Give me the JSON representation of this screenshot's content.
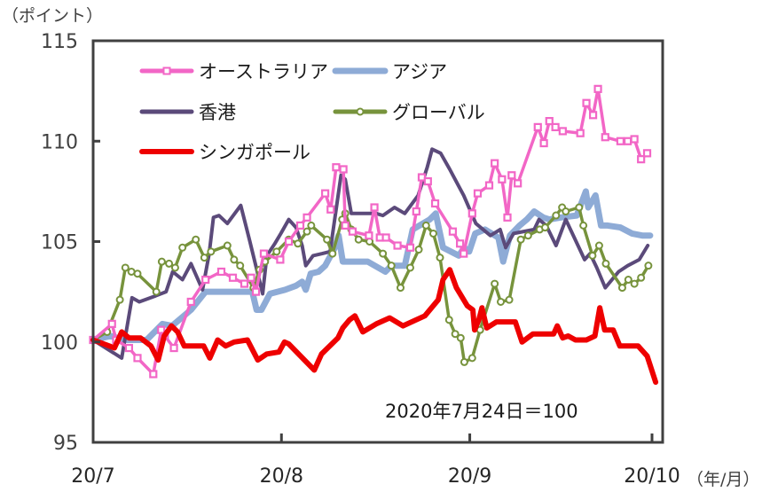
{
  "chart_data": {
    "type": "line",
    "title": "",
    "ylabel": "（ポイント）",
    "xlabel": "（年/月）",
    "ylim": [
      95,
      115
    ],
    "yticks": [
      95,
      100,
      105,
      110,
      115
    ],
    "ytick_labels": [
      "95",
      "100",
      "105",
      "110",
      "115"
    ],
    "x_units": "days since 2020-07-01",
    "xlim": [
      0,
      92
    ],
    "xticks": [
      0,
      31,
      62,
      92
    ],
    "xtick_labels": [
      "20/7",
      "20/8",
      "20/9",
      "20/10"
    ],
    "grid": false,
    "legend_position": "top-left",
    "annotation": "2020年7月24日＝100",
    "series": [
      {
        "name": "オーストラリア",
        "color": "#f266c6",
        "marker": "square",
        "x": [
          0,
          3.1,
          3.8,
          5.9,
          7.3,
          9.9,
          11.2,
          11.8,
          13.3,
          16.1,
          18.5,
          21.1,
          23,
          24.9,
          26,
          26.8,
          28.1,
          30.8,
          32.2,
          34.1,
          35.2,
          38.2,
          39.1,
          40.0,
          41.2,
          41.5,
          42.7,
          45.4,
          46.3,
          47.2,
          48.2,
          50.1,
          52.2,
          53.2,
          54.1,
          55.1,
          56.3,
          59.2,
          60.4,
          61.0,
          62.4,
          63.3,
          65.2,
          66.1,
          67.3,
          68.2,
          68.9,
          69.9,
          73.2,
          74.2,
          75.1,
          76.1,
          77.3,
          80.2,
          81.2,
          82.3,
          83.1,
          84.3,
          86.8,
          88.0,
          89.1,
          90.2,
          91.2
        ],
        "values": [
          100.1,
          100.9,
          100.1,
          99.7,
          99.2,
          98.4,
          100.6,
          100.3,
          99.7,
          102.0,
          103.1,
          103.5,
          103.2,
          102.9,
          103.2,
          102.5,
          104.4,
          104.1,
          105.0,
          105.8,
          106.2,
          107.4,
          106.6,
          108.7,
          108.6,
          105.8,
          105.5,
          105.3,
          106.7,
          105.2,
          105.2,
          104.8,
          104.7,
          106.5,
          108.2,
          108.0,
          106.9,
          105.5,
          104.9,
          104.4,
          106.4,
          107.4,
          107.8,
          108.9,
          108.1,
          106.2,
          108.3,
          107.9,
          110.7,
          109.9,
          111.0,
          110.7,
          110.5,
          110.4,
          111.9,
          111.3,
          112.6,
          110.2,
          110.0,
          110.0,
          110.1,
          109.1,
          109.4
        ]
      },
      {
        "name": "アジア",
        "color": "#8eabd6",
        "marker": "none",
        "x": [
          0,
          2.9,
          5.1,
          7.3,
          8.8,
          11.4,
          13.0,
          16.1,
          18.5,
          21.1,
          23.8,
          26.2,
          26.9,
          27.7,
          29.1,
          31.6,
          33.4,
          34.4,
          35.0,
          35.8,
          37.1,
          38.2,
          39.8,
          40.4,
          41.1,
          42.4,
          45.2,
          48.1,
          49.1,
          51.3,
          52.6,
          55.4,
          56.4,
          57.6,
          60.2,
          61.1,
          61.9,
          62.9,
          64.5,
          66.7,
          67.5,
          68.6,
          70.2,
          71.4,
          72.6,
          74.1,
          75.1,
          77.0,
          79.6,
          81.1,
          81.5,
          82.7,
          83.6,
          84.7,
          86.8,
          88.7,
          90.4,
          91.7
        ],
        "values": [
          100.1,
          100.3,
          100.1,
          100.1,
          100.1,
          100.9,
          100.8,
          101.6,
          102.5,
          102.5,
          102.5,
          102.5,
          101.6,
          101.6,
          102.4,
          102.6,
          102.8,
          103.0,
          102.6,
          103.4,
          103.5,
          103.8,
          104.7,
          105.3,
          104.0,
          104.0,
          104.0,
          103.5,
          103.8,
          103.8,
          105.6,
          106.1,
          106.4,
          104.7,
          104.3,
          104.7,
          104.5,
          105.4,
          105.6,
          105.2,
          104.0,
          105.3,
          105.8,
          106.1,
          106.5,
          106.2,
          106.1,
          106.2,
          106.3,
          107.5,
          106.7,
          107.3,
          105.8,
          105.8,
          105.7,
          105.4,
          105.3,
          105.3
        ]
      },
      {
        "name": "香港",
        "color": "#5b4a7a",
        "marker": "none",
        "x": [
          0,
          4.7,
          6.4,
          7.6,
          10.3,
          12.0,
          13.1,
          14.7,
          16.1,
          18.0,
          19.1,
          19.8,
          20.7,
          22.1,
          24.3,
          25.8,
          27.9,
          28.6,
          29.9,
          30.9,
          32.2,
          33.4,
          34.4,
          35.0,
          36.2,
          37.7,
          39.0,
          40.8,
          41.5,
          42.5,
          45.5,
          46.6,
          47.7,
          49.6,
          51.3,
          53.5,
          55.0,
          55.8,
          57.2,
          58.7,
          60.1,
          61.0,
          62.0,
          63.0,
          65.4,
          67.0,
          67.9,
          69.2,
          72.6,
          73.4,
          74.6,
          76.2,
          77.8,
          80.9,
          81.8,
          82.9,
          84.3,
          86.5,
          88.0,
          89.9,
          91.3
        ],
        "values": [
          100.1,
          99.2,
          102.2,
          102.0,
          102.3,
          102.5,
          103.5,
          103.1,
          103.9,
          102.6,
          104.4,
          106.2,
          106.3,
          105.9,
          106.8,
          105.0,
          102.4,
          104.3,
          104.9,
          105.4,
          106.1,
          105.7,
          104.8,
          103.8,
          104.3,
          104.4,
          104.5,
          108.3,
          108.1,
          106.4,
          106.4,
          106.4,
          106.3,
          106.7,
          106.4,
          107.3,
          108.7,
          109.6,
          109.4,
          108.6,
          107.8,
          107.3,
          106.6,
          105.9,
          105.3,
          105.6,
          104.7,
          105.4,
          105.6,
          106.1,
          105.8,
          104.8,
          106.1,
          104.1,
          104.4,
          103.7,
          102.7,
          103.5,
          103.8,
          104.1,
          104.8
        ]
      },
      {
        "name": "グローバル",
        "color": "#77933c",
        "marker": "circle",
        "x": [
          0,
          2.3,
          4.4,
          5.3,
          6.3,
          7.3,
          10.4,
          11.3,
          12.5,
          13.5,
          14.7,
          16.9,
          18.3,
          19.4,
          22.1,
          23.2,
          24.2,
          26.4,
          27.4,
          28.3,
          30.2,
          32.2,
          33.7,
          35.2,
          35.9,
          38.5,
          39.4,
          41.0,
          41.5,
          42.5,
          43.7,
          45.5,
          47.7,
          49.1,
          50.6,
          52.2,
          53.6,
          54.8,
          56.0,
          57.1,
          58.6,
          59.6,
          60.5,
          61.1,
          62.4,
          63.7,
          66.1,
          67.1,
          68.5,
          70.4,
          71.6,
          73.5,
          74.4,
          76.2,
          77.2,
          77.8,
          80.0,
          80.7,
          82.2,
          83.3,
          84.4,
          87.1,
          88.1,
          89.1,
          90.2,
          91.4
        ],
        "values": [
          100.1,
          100.5,
          102.1,
          103.7,
          103.5,
          103.4,
          102.5,
          104.0,
          103.9,
          103.7,
          104.7,
          105.1,
          104.2,
          104.5,
          104.8,
          104.1,
          103.8,
          102.7,
          103.6,
          104.0,
          104.5,
          105.1,
          104.9,
          105.5,
          105.8,
          105.1,
          104.4,
          106.1,
          106.4,
          105.6,
          105.1,
          105.0,
          104.4,
          103.8,
          102.7,
          103.7,
          104.6,
          105.8,
          105.4,
          104.2,
          101.1,
          100.4,
          100.2,
          99.0,
          99.2,
          100.6,
          102.9,
          102.0,
          102.1,
          105.1,
          105.3,
          105.6,
          105.7,
          106.3,
          106.7,
          106.5,
          106.7,
          105.8,
          104.3,
          104.8,
          103.9,
          102.7,
          103.1,
          102.9,
          103.2,
          103.8
        ]
      },
      {
        "name": "シンガポール",
        "color": "#ee0000",
        "marker": "none",
        "x": [
          0,
          3.5,
          4.7,
          5.9,
          7.8,
          9.5,
          10.7,
          11.7,
          12.9,
          13.9,
          15.0,
          18.2,
          19.2,
          20.5,
          21.8,
          23.2,
          25.4,
          27.1,
          28.6,
          30.6,
          31.5,
          32.2,
          36.4,
          37.6,
          40.3,
          41.1,
          42.2,
          43.1,
          44.4,
          46.6,
          48.8,
          51.0,
          54.6,
          56.8,
          57.6,
          58.7,
          59.8,
          61.6,
          62.5,
          62.8,
          63.5,
          64.0,
          64.8,
          66.4,
          69.5,
          70.6,
          72.4,
          74.6,
          75.8,
          76.4,
          77.3,
          78.2,
          79.4,
          81.2,
          82.6,
          83.4,
          84.2,
          85.6,
          86.7,
          89.7,
          91.2,
          92.6
        ],
        "values": [
          100.1,
          99.7,
          100.5,
          100.2,
          100.2,
          99.8,
          99.1,
          100.3,
          100.8,
          100.5,
          99.8,
          99.8,
          99.2,
          100.1,
          99.8,
          100.0,
          100.1,
          99.1,
          99.4,
          99.5,
          100.0,
          99.9,
          98.6,
          99.4,
          100.2,
          100.7,
          101.1,
          101.3,
          100.5,
          100.9,
          101.2,
          100.8,
          101.3,
          102.1,
          103.1,
          103.6,
          102.7,
          101.8,
          101.6,
          100.6,
          101.1,
          101.7,
          100.7,
          101.0,
          101.0,
          100.0,
          100.4,
          100.4,
          100.4,
          100.8,
          100.2,
          100.3,
          100.1,
          100.1,
          100.3,
          101.7,
          100.6,
          100.6,
          99.8,
          99.8,
          99.3,
          98.0
        ]
      }
    ]
  }
}
